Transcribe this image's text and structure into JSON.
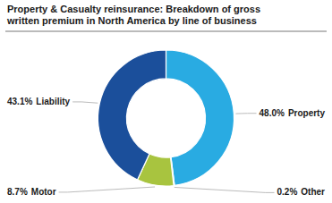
{
  "chart_data": {
    "type": "pie",
    "title": "Property & Casualty reinsurance: Breakdown of gross\nwritten premium in North America by line of business",
    "categories": [
      "Property",
      "Other",
      "Motor",
      "Liability"
    ],
    "values": [
      48.0,
      0.2,
      8.7,
      43.1
    ],
    "value_labels": [
      "48.0%",
      "0.2%",
      "8.7%",
      "43.1%"
    ],
    "data_labels": true,
    "colors": [
      "#29ABE2",
      "#8DC8C8",
      "#A8C43F",
      "#1B4F9B"
    ]
  }
}
